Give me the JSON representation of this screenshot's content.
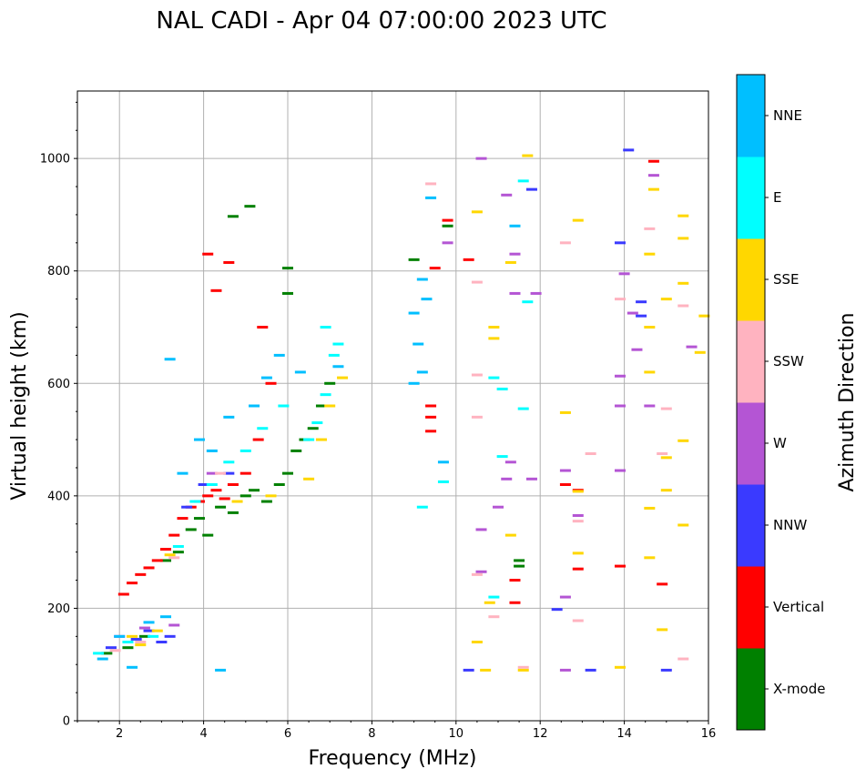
{
  "chart_data": {
    "type": "scatter",
    "title": "NAL CADI - Apr 04 07:00:00 2023 UTC",
    "xlabel": "Frequency (MHz)",
    "ylabel": "Virtual height (km)",
    "xlim": [
      1,
      16
    ],
    "ylim": [
      0,
      1120
    ],
    "xticks": [
      2,
      4,
      6,
      8,
      10,
      12,
      14,
      16
    ],
    "yticks": [
      0,
      200,
      400,
      600,
      800,
      1000
    ],
    "grid": true,
    "colorbar": {
      "label": "Azimuth Direction",
      "categories": [
        {
          "name": "X-mode",
          "color": "#008000"
        },
        {
          "name": "Vertical",
          "color": "#ff0000"
        },
        {
          "name": "NNW",
          "color": "#3a3aff"
        },
        {
          "name": "W",
          "color": "#b455d4"
        },
        {
          "name": "SSW",
          "color": "#ffb3c0"
        },
        {
          "name": "SSE",
          "color": "#ffd700"
        },
        {
          "name": "E",
          "color": "#00ffff"
        },
        {
          "name": "NNE",
          "color": "#00bfff"
        }
      ]
    },
    "series": [
      {
        "name": "X-mode",
        "color": "#008000",
        "points": [
          [
            1.7,
            120
          ],
          [
            2.2,
            130
          ],
          [
            2.6,
            150
          ],
          [
            3.1,
            285
          ],
          [
            3.4,
            300
          ],
          [
            3.7,
            340
          ],
          [
            3.9,
            360
          ],
          [
            4.1,
            330
          ],
          [
            4.4,
            380
          ],
          [
            4.7,
            370
          ],
          [
            5.0,
            400
          ],
          [
            5.2,
            410
          ],
          [
            5.5,
            390
          ],
          [
            5.8,
            420
          ],
          [
            6.0,
            440
          ],
          [
            6.2,
            480
          ],
          [
            6.4,
            500
          ],
          [
            6.6,
            520
          ],
          [
            6.8,
            560
          ],
          [
            7.0,
            600
          ],
          [
            6.0,
            760
          ],
          [
            6.0,
            805
          ],
          [
            5.1,
            915
          ],
          [
            4.7,
            897
          ],
          [
            9.0,
            820
          ],
          [
            9.8,
            880
          ],
          [
            11.5,
            285
          ],
          [
            11.5,
            275
          ]
        ]
      },
      {
        "name": "Vertical",
        "color": "#ff0000",
        "points": [
          [
            2.1,
            225
          ],
          [
            2.3,
            245
          ],
          [
            2.5,
            260
          ],
          [
            2.7,
            272
          ],
          [
            2.9,
            285
          ],
          [
            3.1,
            305
          ],
          [
            3.3,
            330
          ],
          [
            3.5,
            360
          ],
          [
            3.7,
            380
          ],
          [
            3.9,
            390
          ],
          [
            4.1,
            400
          ],
          [
            4.3,
            410
          ],
          [
            4.5,
            395
          ],
          [
            4.7,
            420
          ],
          [
            5.0,
            440
          ],
          [
            5.3,
            500
          ],
          [
            5.6,
            600
          ],
          [
            5.4,
            700
          ],
          [
            4.1,
            830
          ],
          [
            4.3,
            765
          ],
          [
            4.6,
            815
          ],
          [
            9.4,
            560
          ],
          [
            9.4,
            540
          ],
          [
            9.4,
            515
          ],
          [
            9.8,
            890
          ],
          [
            9.5,
            805
          ],
          [
            10.3,
            820
          ],
          [
            11.4,
            250
          ],
          [
            11.4,
            210
          ],
          [
            12.6,
            420
          ],
          [
            12.9,
            410
          ],
          [
            12.9,
            270
          ],
          [
            13.9,
            275
          ],
          [
            14.9,
            243
          ],
          [
            14.7,
            995
          ]
        ]
      },
      {
        "name": "NNW",
        "color": "#3a3aff",
        "points": [
          [
            1.8,
            130
          ],
          [
            2.4,
            145
          ],
          [
            2.7,
            160
          ],
          [
            3.0,
            140
          ],
          [
            3.2,
            150
          ],
          [
            3.6,
            380
          ],
          [
            4.0,
            420
          ],
          [
            4.6,
            440
          ],
          [
            10.3,
            90
          ],
          [
            12.4,
            198
          ],
          [
            13.2,
            90
          ],
          [
            13.9,
            850
          ],
          [
            14.1,
            1015
          ],
          [
            14.4,
            745
          ],
          [
            14.4,
            720
          ],
          [
            15.0,
            90
          ],
          [
            11.8,
            945
          ]
        ]
      },
      {
        "name": "W",
        "color": "#b455d4",
        "points": [
          [
            2.0,
            150
          ],
          [
            2.6,
            165
          ],
          [
            3.3,
            170
          ],
          [
            4.2,
            440
          ],
          [
            10.6,
            340
          ],
          [
            10.6,
            265
          ],
          [
            11.0,
            380
          ],
          [
            11.2,
            430
          ],
          [
            11.3,
            460
          ],
          [
            11.8,
            430
          ],
          [
            11.4,
            760
          ],
          [
            11.4,
            830
          ],
          [
            12.6,
            445
          ],
          [
            12.6,
            220
          ],
          [
            12.6,
            90
          ],
          [
            12.9,
            365
          ],
          [
            13.9,
            445
          ],
          [
            13.9,
            560
          ],
          [
            13.9,
            613
          ],
          [
            14.0,
            795
          ],
          [
            14.3,
            660
          ],
          [
            14.6,
            560
          ],
          [
            14.7,
            970
          ],
          [
            10.6,
            1000
          ],
          [
            11.2,
            935
          ],
          [
            9.8,
            850
          ],
          [
            11.9,
            760
          ],
          [
            14.2,
            725
          ],
          [
            15.6,
            665
          ]
        ]
      },
      {
        "name": "SSW",
        "color": "#ffb3c0",
        "points": [
          [
            1.9,
            125
          ],
          [
            2.5,
            140
          ],
          [
            3.3,
            290
          ],
          [
            4.4,
            440
          ],
          [
            9.4,
            955
          ],
          [
            10.5,
            615
          ],
          [
            10.5,
            540
          ],
          [
            10.9,
            185
          ],
          [
            10.5,
            260
          ],
          [
            11.6,
            95
          ],
          [
            12.6,
            850
          ],
          [
            12.9,
            355
          ],
          [
            12.9,
            178
          ],
          [
            13.2,
            475
          ],
          [
            13.9,
            750
          ],
          [
            14.6,
            875
          ],
          [
            14.9,
            475
          ],
          [
            15.0,
            555
          ],
          [
            15.4,
            738
          ],
          [
            15.4,
            110
          ],
          [
            10.5,
            780
          ]
        ]
      },
      {
        "name": "SSE",
        "color": "#ffd700",
        "points": [
          [
            2.3,
            150
          ],
          [
            2.5,
            135
          ],
          [
            2.9,
            160
          ],
          [
            3.2,
            295
          ],
          [
            4.8,
            390
          ],
          [
            5.6,
            400
          ],
          [
            6.5,
            430
          ],
          [
            6.8,
            500
          ],
          [
            7.0,
            560
          ],
          [
            7.3,
            610
          ],
          [
            10.5,
            140
          ],
          [
            10.7,
            90
          ],
          [
            10.8,
            210
          ],
          [
            10.9,
            680
          ],
          [
            10.9,
            700
          ],
          [
            11.3,
            330
          ],
          [
            11.6,
            90
          ],
          [
            11.7,
            1005
          ],
          [
            11.3,
            815
          ],
          [
            12.9,
            890
          ],
          [
            12.9,
            298
          ],
          [
            12.9,
            408
          ],
          [
            13.9,
            95
          ],
          [
            14.6,
            290
          ],
          [
            14.6,
            378
          ],
          [
            14.6,
            620
          ],
          [
            14.6,
            700
          ],
          [
            14.6,
            830
          ],
          [
            14.7,
            945
          ],
          [
            14.9,
            162
          ],
          [
            15.0,
            410
          ],
          [
            15.0,
            468
          ],
          [
            15.0,
            750
          ],
          [
            15.4,
            898
          ],
          [
            15.4,
            858
          ],
          [
            15.4,
            778
          ],
          [
            15.4,
            498
          ],
          [
            15.4,
            348
          ],
          [
            15.8,
            655
          ],
          [
            15.9,
            720
          ],
          [
            10.5,
            905
          ],
          [
            12.6,
            548
          ]
        ]
      },
      {
        "name": "E",
        "color": "#00ffff",
        "points": [
          [
            1.5,
            120
          ],
          [
            2.2,
            140
          ],
          [
            2.8,
            150
          ],
          [
            3.4,
            310
          ],
          [
            3.8,
            390
          ],
          [
            4.2,
            420
          ],
          [
            4.6,
            460
          ],
          [
            5.0,
            480
          ],
          [
            5.4,
            520
          ],
          [
            5.9,
            560
          ],
          [
            6.5,
            500
          ],
          [
            6.7,
            530
          ],
          [
            6.9,
            580
          ],
          [
            7.1,
            650
          ],
          [
            7.2,
            670
          ],
          [
            6.9,
            700
          ],
          [
            10.9,
            610
          ],
          [
            11.1,
            590
          ],
          [
            11.1,
            470
          ],
          [
            10.9,
            220
          ],
          [
            11.7,
            745
          ],
          [
            11.6,
            555
          ],
          [
            11.6,
            960
          ],
          [
            9.2,
            380
          ],
          [
            9.7,
            425
          ]
        ]
      },
      {
        "name": "NNE",
        "color": "#00bfff",
        "points": [
          [
            1.6,
            110
          ],
          [
            2.0,
            150
          ],
          [
            2.7,
            175
          ],
          [
            3.1,
            185
          ],
          [
            3.5,
            440
          ],
          [
            3.9,
            500
          ],
          [
            4.2,
            480
          ],
          [
            4.6,
            540
          ],
          [
            5.2,
            560
          ],
          [
            5.5,
            610
          ],
          [
            5.8,
            650
          ],
          [
            6.3,
            620
          ],
          [
            7.2,
            630
          ],
          [
            3.2,
            643
          ],
          [
            9.0,
            725
          ],
          [
            9.1,
            670
          ],
          [
            9.0,
            600
          ],
          [
            9.2,
            620
          ],
          [
            9.3,
            750
          ],
          [
            9.4,
            930
          ],
          [
            9.2,
            785
          ],
          [
            11.4,
            880
          ],
          [
            4.4,
            90
          ],
          [
            2.3,
            95
          ],
          [
            9.7,
            460
          ]
        ]
      }
    ]
  }
}
